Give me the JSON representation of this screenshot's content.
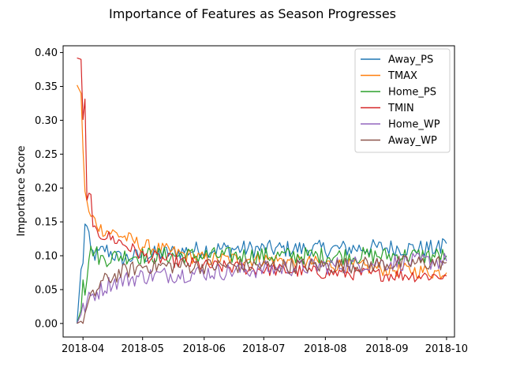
{
  "chart_data": {
    "type": "line",
    "title": "Importance of Features as Season Progresses",
    "xlabel": "",
    "ylabel": "Importance Score",
    "xlim": [
      "2018-03-22",
      "2018-10-05"
    ],
    "ylim": [
      -0.02,
      0.41
    ],
    "x_ticks": [
      "2018-04",
      "2018-05",
      "2018-06",
      "2018-07",
      "2018-08",
      "2018-09",
      "2018-10"
    ],
    "y_ticks": [
      "0.00",
      "0.05",
      "0.10",
      "0.15",
      "0.20",
      "0.25",
      "0.30",
      "0.35",
      "0.40"
    ],
    "grid": false,
    "legend_position": "top-right",
    "x_start": "2018-03-29",
    "x_end": "2018-10-01",
    "series": [
      {
        "name": "Away_PS",
        "color": "#1f77b4",
        "keypoints": [
          [
            "2018-03-29",
            0.0
          ],
          [
            "2018-03-31",
            0.08
          ],
          [
            "2018-04-01",
            0.085
          ],
          [
            "2018-04-02",
            0.152
          ],
          [
            "2018-04-03",
            0.14
          ],
          [
            "2018-04-05",
            0.105
          ],
          [
            "2018-04-08",
            0.1
          ],
          [
            "2018-04-12",
            0.11
          ],
          [
            "2018-04-20",
            0.095
          ],
          [
            "2018-05-01",
            0.1
          ],
          [
            "2018-06-01",
            0.11
          ],
          [
            "2018-07-01",
            0.11
          ],
          [
            "2018-08-01",
            0.11
          ],
          [
            "2018-09-01",
            0.112
          ],
          [
            "2018-09-28",
            0.11
          ],
          [
            "2018-09-30",
            0.128
          ],
          [
            "2018-10-01",
            0.118
          ]
        ],
        "noise": 0.013
      },
      {
        "name": "TMAX",
        "color": "#ff7f0e",
        "keypoints": [
          [
            "2018-03-29",
            0.352
          ],
          [
            "2018-03-31",
            0.34
          ],
          [
            "2018-04-01",
            0.25
          ],
          [
            "2018-04-02",
            0.2
          ],
          [
            "2018-04-04",
            0.16
          ],
          [
            "2018-04-06",
            0.155
          ],
          [
            "2018-04-10",
            0.14
          ],
          [
            "2018-04-20",
            0.13
          ],
          [
            "2018-05-01",
            0.115
          ],
          [
            "2018-06-01",
            0.095
          ],
          [
            "2018-07-01",
            0.095
          ],
          [
            "2018-08-01",
            0.088
          ],
          [
            "2018-09-01",
            0.08
          ],
          [
            "2018-10-01",
            0.075
          ]
        ],
        "noise": 0.011
      },
      {
        "name": "Home_PS",
        "color": "#2ca02c",
        "keypoints": [
          [
            "2018-03-29",
            0.0
          ],
          [
            "2018-03-31",
            0.02
          ],
          [
            "2018-04-01",
            0.075
          ],
          [
            "2018-04-02",
            0.05
          ],
          [
            "2018-04-04",
            0.1
          ],
          [
            "2018-04-06",
            0.11
          ],
          [
            "2018-04-10",
            0.095
          ],
          [
            "2018-04-20",
            0.1
          ],
          [
            "2018-05-01",
            0.1
          ],
          [
            "2018-06-01",
            0.1
          ],
          [
            "2018-07-01",
            0.1
          ],
          [
            "2018-08-01",
            0.1
          ],
          [
            "2018-09-01",
            0.1
          ],
          [
            "2018-10-01",
            0.1
          ]
        ],
        "noise": 0.013
      },
      {
        "name": "TMIN",
        "color": "#d62728",
        "keypoints": [
          [
            "2018-03-29",
            0.392
          ],
          [
            "2018-03-31",
            0.39
          ],
          [
            "2018-04-01",
            0.293
          ],
          [
            "2018-04-02",
            0.328
          ],
          [
            "2018-04-03",
            0.175
          ],
          [
            "2018-04-05",
            0.2
          ],
          [
            "2018-04-06",
            0.135
          ],
          [
            "2018-04-12",
            0.13
          ],
          [
            "2018-04-20",
            0.12
          ],
          [
            "2018-05-01",
            0.1
          ],
          [
            "2018-06-01",
            0.085
          ],
          [
            "2018-07-01",
            0.08
          ],
          [
            "2018-08-01",
            0.075
          ],
          [
            "2018-09-01",
            0.072
          ],
          [
            "2018-10-01",
            0.07
          ]
        ],
        "noise": 0.01
      },
      {
        "name": "Home_WP",
        "color": "#9467bd",
        "keypoints": [
          [
            "2018-03-29",
            0.0
          ],
          [
            "2018-04-01",
            0.02
          ],
          [
            "2018-04-05",
            0.04
          ],
          [
            "2018-04-15",
            0.06
          ],
          [
            "2018-05-01",
            0.07
          ],
          [
            "2018-06-01",
            0.075
          ],
          [
            "2018-07-01",
            0.08
          ],
          [
            "2018-08-01",
            0.085
          ],
          [
            "2018-09-01",
            0.09
          ],
          [
            "2018-10-01",
            0.092
          ]
        ],
        "noise": 0.013
      },
      {
        "name": "Away_WP",
        "color": "#8c564b",
        "keypoints": [
          [
            "2018-03-29",
            0.0
          ],
          [
            "2018-04-01",
            0.005
          ],
          [
            "2018-04-04",
            0.03
          ],
          [
            "2018-04-10",
            0.06
          ],
          [
            "2018-04-20",
            0.075
          ],
          [
            "2018-05-01",
            0.085
          ],
          [
            "2018-06-01",
            0.085
          ],
          [
            "2018-07-01",
            0.085
          ],
          [
            "2018-08-01",
            0.085
          ],
          [
            "2018-09-01",
            0.088
          ],
          [
            "2018-10-01",
            0.09
          ]
        ],
        "noise": 0.012
      }
    ]
  }
}
